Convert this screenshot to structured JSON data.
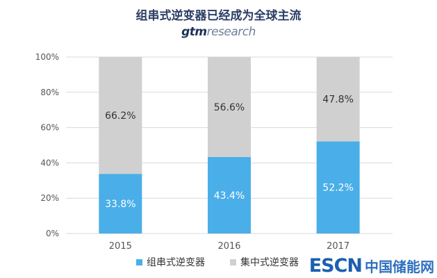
{
  "header": {
    "title": "组串式逆变器已经成为全球主流",
    "brand_part1": "gtm",
    "brand_part2": "research"
  },
  "watermark": {
    "latin": "ESCN",
    "cn": "中国储能网"
  },
  "colors": {
    "series1": "#4aaee8",
    "series2": "#d0d0d0",
    "grid": "#d9d9d9",
    "axis_text": "#555555"
  },
  "chart_data": {
    "type": "bar",
    "stacked": true,
    "categories": [
      "2015",
      "2016",
      "2017"
    ],
    "series": [
      {
        "name": "组串式逆变器",
        "values": [
          33.8,
          43.4,
          52.2
        ],
        "labels": [
          "33.8%",
          "43.4%",
          "52.2%"
        ]
      },
      {
        "name": "集中式逆变器",
        "values": [
          66.2,
          56.6,
          47.8
        ],
        "labels": [
          "66.2%",
          "56.6%",
          "47.8%"
        ]
      }
    ],
    "ylim": [
      0,
      100
    ],
    "yticks": [
      "0%",
      "20%",
      "40%",
      "60%",
      "80%",
      "100%"
    ],
    "legend_position": "bottom",
    "grid": true
  }
}
